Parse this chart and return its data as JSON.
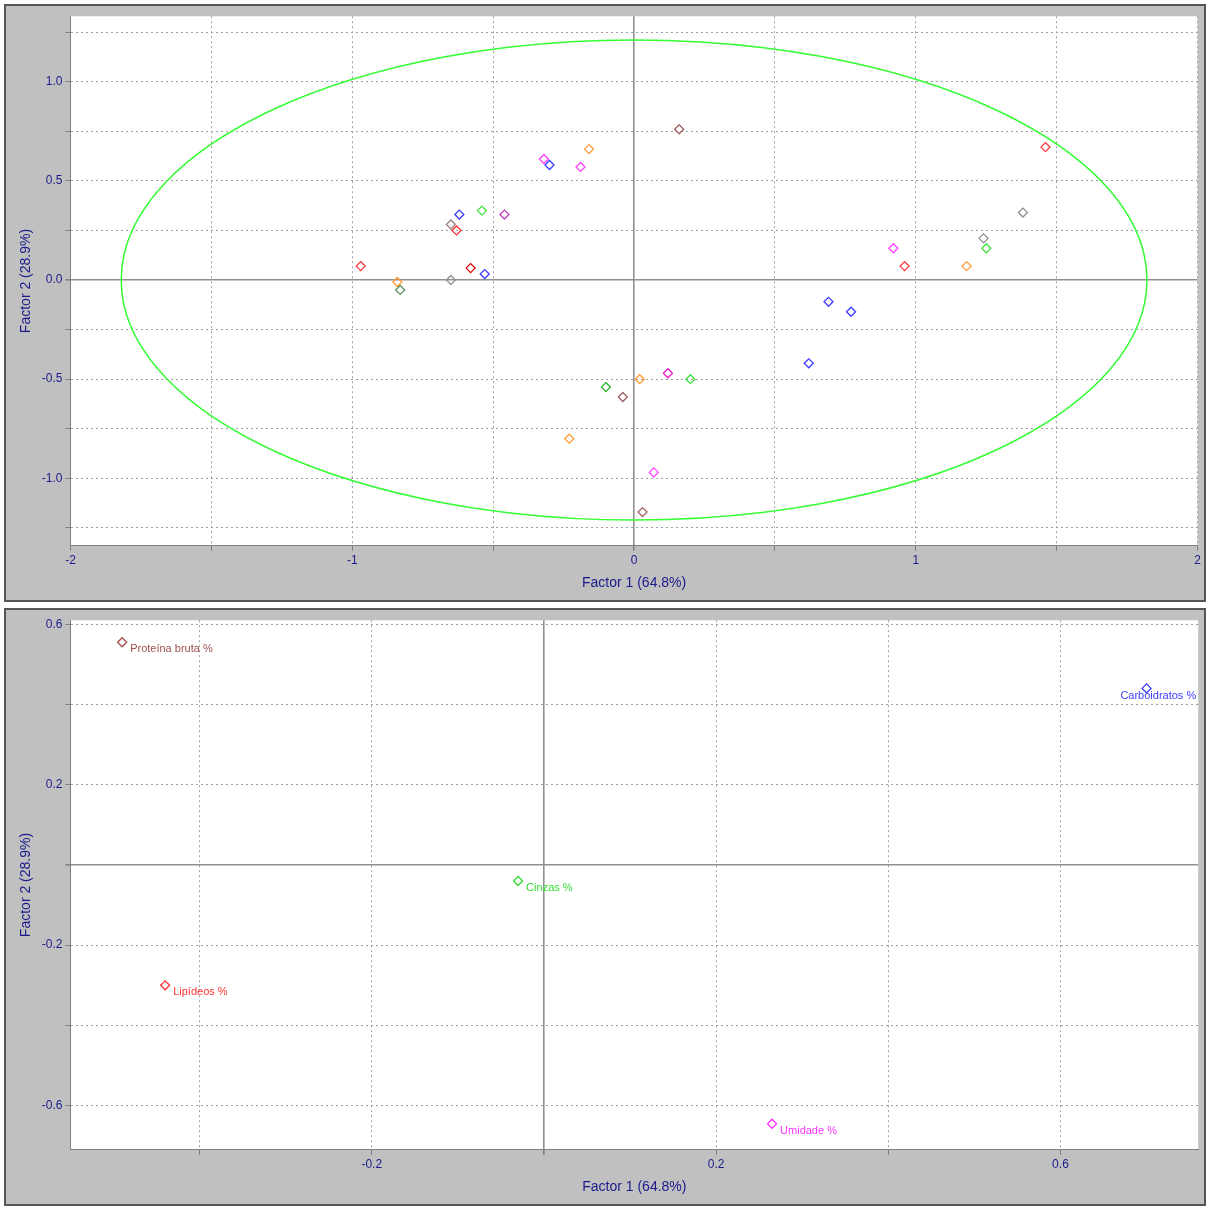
{
  "chart_data": [
    {
      "type": "scatter",
      "xlabel": "Factor 1 (64.8%)",
      "ylabel": "Factor 2 (28.9%)",
      "marker": "diamond",
      "grid": true,
      "legend": false,
      "xlim": [
        -2,
        2
      ],
      "xticks": [
        -2,
        {
          "value": -1.5,
          "label": null
        },
        -1,
        {
          "value": -0.5,
          "label": null
        },
        0,
        {
          "value": 0.5,
          "label": null
        },
        1,
        {
          "value": 1.5,
          "label": null
        },
        2
      ],
      "ylim": [
        -1.34,
        1.33
      ],
      "yticks": [
        {
          "value": -1.25,
          "label": null
        },
        {
          "value": -1,
          "label": "-1.0"
        },
        {
          "value": -0.75,
          "label": null
        },
        {
          "value": -0.5,
          "label": "-0.5"
        },
        {
          "value": -0.25,
          "label": null
        },
        {
          "value": 0,
          "label": "0.0"
        },
        {
          "value": 0.25,
          "label": null
        },
        {
          "value": 0.5,
          "label": "0.5"
        },
        {
          "value": 0.75,
          "label": null
        },
        {
          "value": 1,
          "label": "1.0"
        },
        {
          "value": 1.25,
          "label": null
        }
      ],
      "series": [
        {
          "x": [
            -0.32,
            -0.3,
            -0.19,
            -0.16,
            -0.62,
            -0.54,
            -0.46,
            -0.65,
            -0.63,
            -0.97,
            -0.58,
            -0.53,
            -0.65,
            -0.84,
            -0.83,
            -0.1,
            -0.04,
            -0.23,
            0.16,
            1.46,
            1.38,
            1.24,
            1.25,
            0.92,
            0.96,
            1.18,
            0.69,
            0.77,
            0.62,
            0.02,
            0.12,
            0.2,
            0.07,
            0.03
          ],
          "values": [
            0.61,
            0.58,
            0.57,
            0.66,
            0.33,
            0.35,
            0.33,
            0.28,
            0.25,
            0.07,
            0.06,
            0.03,
            0.0,
            -0.01,
            -0.05,
            -0.54,
            -0.59,
            -0.8,
            0.76,
            0.67,
            0.34,
            0.21,
            0.16,
            0.16,
            0.07,
            0.07,
            -0.11,
            -0.16,
            -0.42,
            -0.5,
            -0.47,
            -0.5,
            -0.97,
            -1.17
          ],
          "colors": [
            "#ff40ff",
            "#3c3cff",
            "#ff40ff",
            "#ff9933",
            "#3c3cff",
            "#40e040",
            "#c040c0",
            "#a08080",
            "#ff3333",
            "#ff3333",
            "#e00000",
            "#3c3cff",
            "#909090",
            "#ff9933",
            "#609060",
            "#20b020",
            "#a06060",
            "#ff9933",
            "#a06060",
            "#ff3333",
            "#909090",
            "#909090",
            "#40e040",
            "#ff40ff",
            "#ff3333",
            "#ff9933",
            "#3c3cff",
            "#3c3cff",
            "#3c3cff",
            "#ff9933",
            "#e020c0",
            "#40e040",
            "#ff40ff",
            "#a06060"
          ]
        }
      ]
    },
    {
      "type": "scatter",
      "xlabel": "Factor 1 (64.8%)",
      "ylabel": "Factor 2 (28.9%)",
      "marker": "diamond",
      "grid": true,
      "legend": false,
      "xlim": [
        -0.55,
        0.76
      ],
      "xticks": [
        {
          "value": -0.4,
          "label": null
        },
        -0.2,
        {
          "value": 0,
          "label": null
        },
        0.2,
        {
          "value": 0.4,
          "label": null
        },
        0.6
      ],
      "ylim": [
        -0.71,
        0.61
      ],
      "yticks": [
        -0.6,
        {
          "value": -0.4,
          "label": null
        },
        -0.2,
        {
          "value": 0,
          "label": null
        },
        0.2,
        {
          "value": 0.4,
          "label": null
        },
        0.6
      ],
      "series": [
        {
          "name": "Proteína bruta %",
          "color": "#a05050",
          "x": [
            -0.49
          ],
          "values": [
            0.555
          ]
        },
        {
          "name": "Lipídeos %",
          "color": "#ff3333",
          "x": [
            -0.44
          ],
          "values": [
            -0.3
          ]
        },
        {
          "name": "Cinzas %",
          "color": "#33dd33",
          "x": [
            -0.03
          ],
          "values": [
            -0.04
          ]
        },
        {
          "name": "Carboidratos %",
          "color": "#3c3cff",
          "x": [
            0.7
          ],
          "values": [
            0.44
          ]
        },
        {
          "name": "Umidade %",
          "color": "#ff33ff",
          "x": [
            0.265
          ],
          "values": [
            -0.645
          ]
        }
      ]
    }
  ]
}
